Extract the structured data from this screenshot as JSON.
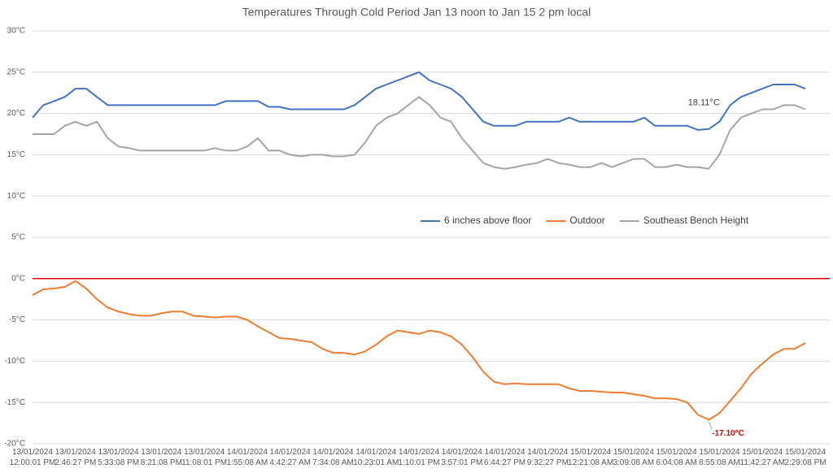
{
  "chart_data": {
    "type": "line",
    "title": "Temperatures Through Cold Period Jan 13 noon to Jan 15 2 pm local",
    "categories": [
      "13/01/2024 12:00:01 PM",
      null,
      null,
      null,
      "13/01/2024 2:46:27 PM",
      null,
      null,
      null,
      "13/01/2024 5:33:08 PM",
      null,
      null,
      null,
      "13/01/2024 8:21:08 PM",
      null,
      null,
      null,
      "13/01/2024 11:08:01 PM",
      null,
      null,
      null,
      "14/01/2024 1:55:08 AM",
      null,
      null,
      null,
      "14/01/2024 4:42:27 AM",
      null,
      null,
      null,
      "14/01/2024 7:34:08 AM",
      null,
      null,
      null,
      "14/01/2024 10:23:01 AM",
      null,
      null,
      null,
      "14/01/2024 1:10:01 PM",
      null,
      null,
      null,
      "14/01/2024 3:57:01 PM",
      null,
      null,
      null,
      "14/01/2024 6:44:27 PM",
      null,
      null,
      null,
      "14/01/2024 9:32:27 PM",
      null,
      null,
      null,
      "15/01/2024 12:21:08 AM",
      null,
      null,
      null,
      "15/01/2024 3:09:08 AM",
      null,
      null,
      null,
      "15/01/2024 6:04:08 AM",
      null,
      null,
      null,
      "15/01/2024 8:55:08 AM",
      null,
      null,
      null,
      "15/01/2024 11:42:27 AM",
      null,
      null,
      null,
      "15/01/2024 2:29:08 PM"
    ],
    "series": [
      {
        "name": "6 inches above floor",
        "color": "#4472c4",
        "value_label_color": "#404040",
        "values": [
          19.5,
          21,
          21.5,
          22,
          23,
          23,
          22,
          21,
          21,
          21,
          21,
          21,
          21,
          21,
          21,
          21,
          21,
          21,
          21.5,
          21.5,
          21.5,
          21.5,
          20.8,
          20.8,
          20.5,
          20.5,
          20.5,
          20.5,
          20.5,
          20.5,
          21,
          22,
          23,
          23.5,
          24,
          24.5,
          25,
          24,
          23.5,
          23,
          22,
          20.5,
          19,
          18.5,
          18.5,
          18.5,
          19,
          19,
          19,
          19,
          19.5,
          19,
          19,
          19,
          19,
          19,
          19,
          19.5,
          18.5,
          18.5,
          18.5,
          18.5,
          18,
          18.11,
          19,
          21,
          22,
          22.5,
          23,
          23.5,
          23.5,
          23.5,
          23
        ],
        "value_labels": [
          null,
          null,
          null,
          null,
          null,
          null,
          null,
          null,
          null,
          null,
          null,
          null,
          null,
          null,
          null,
          null,
          null,
          null,
          null,
          null,
          null,
          null,
          null,
          null,
          null,
          null,
          null,
          null,
          null,
          null,
          null,
          null,
          null,
          null,
          null,
          null,
          null,
          null,
          null,
          null,
          null,
          null,
          null,
          null,
          null,
          null,
          null,
          null,
          null,
          null,
          null,
          null,
          null,
          null,
          null,
          null,
          null,
          null,
          null,
          null,
          null,
          null,
          null,
          "18.11°C",
          null,
          null,
          null,
          null,
          null,
          null,
          null,
          null,
          null
        ]
      },
      {
        "name": "Outdoor",
        "color": "#ed7d31",
        "value_label_color": "#e00000",
        "values": [
          -2,
          -1.3,
          -1.2,
          -1,
          -0.3,
          -1.2,
          -2.5,
          -3.5,
          -4,
          -4.3,
          -4.5,
          -4.5,
          -4.2,
          -4,
          -4,
          -4.5,
          -4.6,
          -4.7,
          -4.6,
          -4.6,
          -5,
          -5.8,
          -6.5,
          -7.2,
          -7.3,
          -7.5,
          -7.7,
          -8.5,
          -9,
          -9,
          -9.2,
          -8.8,
          -8,
          -7,
          -6.3,
          -6.5,
          -6.7,
          -6.3,
          -6.5,
          -7,
          -8,
          -9.5,
          -11.3,
          -12.5,
          -12.8,
          -12.7,
          -12.8,
          -12.8,
          -12.8,
          -12.8,
          -13.3,
          -13.6,
          -13.6,
          -13.7,
          -13.8,
          -13.8,
          -14,
          -14.2,
          -14.5,
          -14.5,
          -14.6,
          -15,
          -16.5,
          -17.1,
          -16.3,
          -14.8,
          -13.3,
          -11.5,
          -10.3,
          -9.2,
          -8.5,
          -8.5,
          -7.8
        ],
        "value_labels": [
          null,
          null,
          null,
          null,
          null,
          null,
          null,
          null,
          null,
          null,
          null,
          null,
          null,
          null,
          null,
          null,
          null,
          null,
          null,
          null,
          null,
          null,
          null,
          null,
          null,
          null,
          null,
          null,
          null,
          null,
          null,
          null,
          null,
          null,
          null,
          null,
          null,
          null,
          null,
          null,
          null,
          null,
          null,
          null,
          null,
          null,
          null,
          null,
          null,
          null,
          null,
          null,
          null,
          null,
          null,
          null,
          null,
          null,
          null,
          null,
          null,
          null,
          null,
          "-17.10°C",
          null,
          null,
          null,
          null,
          null,
          null,
          null,
          null,
          null
        ]
      },
      {
        "name": "Southeast Bench Height",
        "color": "#a5a5a5",
        "values": [
          17.5,
          17.5,
          17.5,
          18.5,
          19,
          18.5,
          19,
          17,
          16,
          15.8,
          15.5,
          15.5,
          15.5,
          15.5,
          15.5,
          15.5,
          15.5,
          15.8,
          15.5,
          15.5,
          16,
          17,
          15.5,
          15.5,
          15,
          14.8,
          15,
          15,
          14.8,
          14.8,
          15,
          16.5,
          18.5,
          19.5,
          20,
          21,
          22,
          21,
          19.5,
          19,
          17,
          15.5,
          14,
          13.5,
          13.3,
          13.5,
          13.8,
          14,
          14.5,
          14,
          13.8,
          13.5,
          13.5,
          14,
          13.5,
          14,
          14.5,
          14.5,
          13.5,
          13.5,
          13.8,
          13.5,
          13.5,
          13.3,
          15,
          18,
          19.5,
          20,
          20.5,
          20.5,
          21,
          21,
          20.5
        ]
      }
    ],
    "ylim": [
      -20,
      30
    ],
    "yticks": [
      {
        "value": -20,
        "label": "-20°C"
      },
      {
        "value": -15,
        "label": "-15°C"
      },
      {
        "value": -10,
        "label": "-10°C"
      },
      {
        "value": -5,
        "label": "-5°C"
      },
      {
        "value": 0,
        "label": "0°C"
      },
      {
        "value": 5,
        "label": "5°C"
      },
      {
        "value": 10,
        "label": "10°C"
      },
      {
        "value": 15,
        "label": "15°C"
      },
      {
        "value": 20,
        "label": "20°C"
      },
      {
        "value": 25,
        "label": "25°C"
      },
      {
        "value": 30,
        "label": "30°C"
      }
    ],
    "grid": true,
    "reference_line": {
      "value": 0,
      "color": "#e00000"
    },
    "legend": "right"
  }
}
